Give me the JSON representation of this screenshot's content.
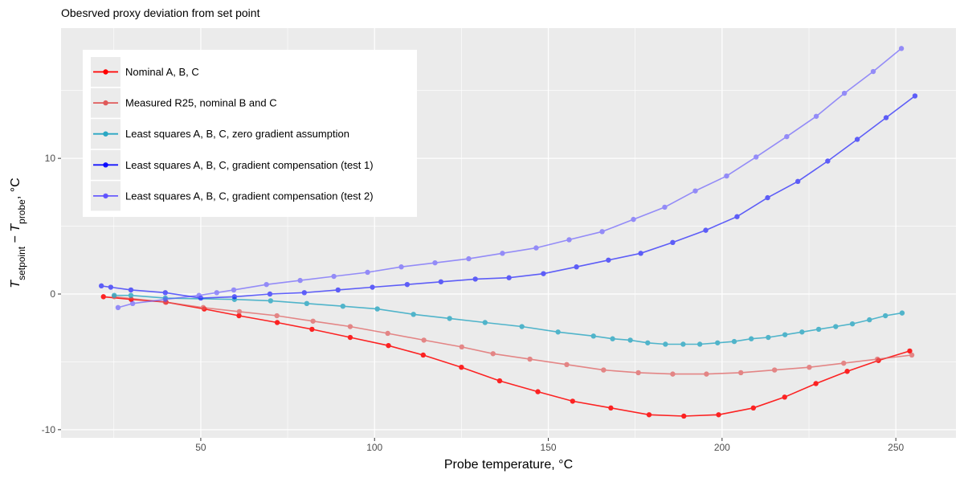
{
  "chart_data": {
    "type": "line",
    "title": "Obesrved proxy deviation from set point",
    "xlabel": "Probe temperature, °C",
    "ylabel": [
      "T",
      "setpoint",
      " − ",
      "T",
      "probe",
      ", °C"
    ],
    "xlim": [
      9.8,
      267.3
    ],
    "ylim": [
      -10.6,
      19.6
    ],
    "xticks": [
      50,
      100,
      150,
      200,
      250
    ],
    "yticks": [
      -10,
      0,
      10
    ],
    "grid": true,
    "legend": "top-left",
    "series": [
      {
        "name": "Nominal A, B, C",
        "color": "#ff0000",
        "opacity": 0.85,
        "x": [
          22,
          30,
          40,
          51,
          61,
          72,
          82,
          93,
          104,
          114,
          125,
          136,
          147,
          157,
          168,
          179,
          189,
          199,
          209,
          218,
          227,
          236,
          245,
          254
        ],
        "values": [
          -0.2,
          -0.4,
          -0.6,
          -1.1,
          -1.6,
          -2.1,
          -2.6,
          -3.2,
          -3.8,
          -4.5,
          -5.4,
          -6.4,
          -7.2,
          -7.9,
          -8.4,
          -8.9,
          -9.0,
          -8.9,
          -8.4,
          -7.6,
          -6.6,
          -5.7,
          -4.9,
          -4.2
        ]
      },
      {
        "name": "Measured R25, nominal B and C",
        "color": "#e05a5a",
        "opacity": 0.7,
        "x": [
          25.1,
          39.8,
          50.7,
          61.1,
          71.9,
          82.3,
          93,
          103.8,
          114.2,
          125.1,
          134.1,
          144.7,
          155.3,
          165.9,
          175.9,
          185.8,
          195.5,
          205.4,
          215.1,
          225.1,
          235,
          244.7,
          254.6
        ],
        "values": [
          -0.2,
          -0.6,
          -1.0,
          -1.3,
          -1.6,
          -2.0,
          -2.4,
          -2.9,
          -3.4,
          -3.9,
          -4.4,
          -4.8,
          -5.2,
          -5.6,
          -5.8,
          -5.9,
          -5.9,
          -5.8,
          -5.6,
          -5.4,
          -5.1,
          -4.8,
          -4.5
        ]
      },
      {
        "name": "Least squares A, B, C, zero gradient assumption",
        "color": "#2aa7c3",
        "opacity": 0.8,
        "x": [
          25.1,
          29.9,
          39.8,
          59.7,
          70.1,
          80.5,
          90.9,
          100.8,
          111.2,
          121.6,
          131.8,
          142.4,
          152.8,
          163,
          168.5,
          173.6,
          178.6,
          183.7,
          188.8,
          193.6,
          198.7,
          203.5,
          208.4,
          213.3,
          218.1,
          223,
          227.8,
          232.7,
          237.5,
          242.4,
          247,
          251.8
        ],
        "values": [
          -0.1,
          -0.1,
          -0.3,
          -0.4,
          -0.5,
          -0.7,
          -0.9,
          -1.1,
          -1.5,
          -1.8,
          -2.1,
          -2.4,
          -2.8,
          -3.1,
          -3.3,
          -3.4,
          -3.6,
          -3.7,
          -3.7,
          -3.7,
          -3.6,
          -3.5,
          -3.3,
          -3.2,
          -3.0,
          -2.8,
          -2.6,
          -2.4,
          -2.2,
          -1.9,
          -1.6,
          -1.4
        ]
      },
      {
        "name": "Least squares A, B, C, gradient compensation (test 1)",
        "color": "#0000ff",
        "opacity": 0.6,
        "x": [
          21.4,
          24.1,
          29.9,
          39.8,
          50,
          59.7,
          69.9,
          79.8,
          89.5,
          99.4,
          109.4,
          119.1,
          129,
          138.7,
          148.6,
          158.1,
          167.3,
          176.6,
          185.8,
          195.3,
          204.3,
          213.1,
          221.8,
          230.4,
          238.9,
          247.2,
          255.5
        ],
        "values": [
          0.6,
          0.5,
          0.3,
          0.1,
          -0.3,
          -0.2,
          0.0,
          0.1,
          0.3,
          0.5,
          0.7,
          0.9,
          1.1,
          1.2,
          1.5,
          2.0,
          2.5,
          3.0,
          3.8,
          4.7,
          5.7,
          7.1,
          8.3,
          9.8,
          11.4,
          13.0,
          14.6
        ]
      },
      {
        "name": "Least squares A, B, C, gradient compensation (test 2)",
        "color": "#5a4dff",
        "opacity": 0.6,
        "x": [
          26.2,
          30.4,
          39.8,
          49.5,
          54.6,
          59.5,
          68.9,
          78.6,
          88.3,
          98,
          107.7,
          117.4,
          127.1,
          136.8,
          146.5,
          156,
          165.5,
          174.5,
          183.5,
          192.3,
          201.3,
          209.8,
          218.6,
          227.1,
          235.2,
          243.5,
          251.6
        ],
        "values": [
          -1.0,
          -0.7,
          -0.4,
          -0.1,
          0.1,
          0.3,
          0.7,
          1.0,
          1.3,
          1.6,
          2.0,
          2.3,
          2.6,
          3.0,
          3.4,
          4.0,
          4.6,
          5.5,
          6.4,
          7.6,
          8.7,
          10.1,
          11.6,
          13.1,
          14.8,
          16.4,
          18.1
        ]
      }
    ]
  }
}
